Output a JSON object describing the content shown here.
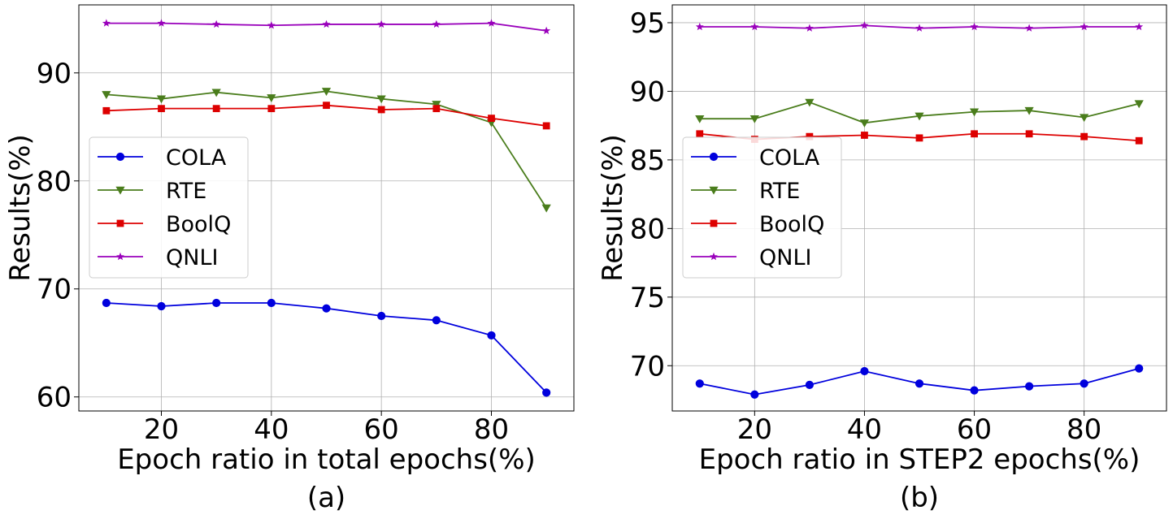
{
  "chart_data": [
    {
      "type": "line",
      "panel_label": "(a)",
      "xlabel": "Epoch ratio in total epochs(%)",
      "ylabel": "Results(%)",
      "x": [
        10,
        20,
        30,
        40,
        50,
        60,
        70,
        80,
        90
      ],
      "xlim": [
        5,
        95
      ],
      "ylim": [
        58.7,
        96.3
      ],
      "xticks": [
        20,
        40,
        60,
        80
      ],
      "yticks": [
        60,
        70,
        80,
        90
      ],
      "grid": true,
      "legend_position": "center-left",
      "series": [
        {
          "name": "COLA",
          "color": "#0000dd",
          "marker": "circle",
          "values": [
            68.7,
            68.4,
            68.7,
            68.7,
            68.2,
            67.5,
            67.1,
            65.7,
            60.4
          ]
        },
        {
          "name": "RTE",
          "color": "#4a7d1c",
          "marker": "triangle-down",
          "values": [
            88.0,
            87.6,
            88.2,
            87.7,
            88.3,
            87.6,
            87.1,
            85.4,
            77.5
          ]
        },
        {
          "name": "BoolQ",
          "color": "#dd0000",
          "marker": "square",
          "values": [
            86.5,
            86.7,
            86.7,
            86.7,
            87.0,
            86.6,
            86.7,
            85.8,
            85.1
          ]
        },
        {
          "name": "QNLI",
          "color": "#9900bb",
          "marker": "star",
          "values": [
            94.6,
            94.6,
            94.5,
            94.4,
            94.5,
            94.5,
            94.5,
            94.6,
            93.9
          ]
        }
      ]
    },
    {
      "type": "line",
      "panel_label": "(b)",
      "xlabel": "Epoch ratio in STEP2 epochs(%)",
      "ylabel": "Results(%)",
      "x": [
        10,
        20,
        30,
        40,
        50,
        60,
        70,
        80,
        90
      ],
      "xlim": [
        5,
        95
      ],
      "ylim": [
        66.7,
        96.3
      ],
      "xticks": [
        20,
        40,
        60,
        80
      ],
      "yticks": [
        70,
        75,
        80,
        85,
        90,
        95
      ],
      "grid": true,
      "legend_position": "center-left",
      "series": [
        {
          "name": "COLA",
          "color": "#0000dd",
          "marker": "circle",
          "values": [
            68.7,
            67.9,
            68.6,
            69.6,
            68.7,
            68.2,
            68.5,
            68.7,
            69.8
          ]
        },
        {
          "name": "RTE",
          "color": "#4a7d1c",
          "marker": "triangle-down",
          "values": [
            88.0,
            88.0,
            89.2,
            87.7,
            88.2,
            88.5,
            88.6,
            88.1,
            89.1
          ]
        },
        {
          "name": "BoolQ",
          "color": "#dd0000",
          "marker": "square",
          "values": [
            86.9,
            86.5,
            86.7,
            86.8,
            86.6,
            86.9,
            86.9,
            86.7,
            86.4
          ]
        },
        {
          "name": "QNLI",
          "color": "#9900bb",
          "marker": "star",
          "values": [
            94.7,
            94.7,
            94.6,
            94.8,
            94.6,
            94.7,
            94.6,
            94.7,
            94.7
          ]
        }
      ]
    }
  ]
}
